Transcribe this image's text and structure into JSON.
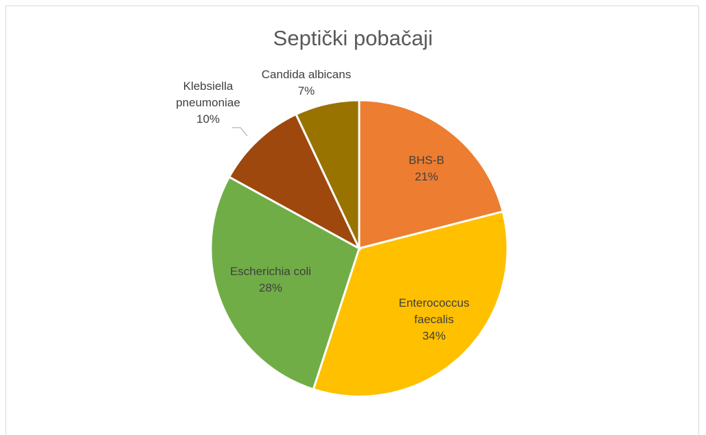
{
  "chart_data": {
    "type": "pie",
    "title": "Septički pobačaji",
    "categories": [
      "BHS-B",
      "Enterococcus faecalis",
      "Escherichia coli",
      "Klebsiella pneumoniae",
      "Candida albicans"
    ],
    "values": [
      21,
      34,
      28,
      10,
      7
    ],
    "value_labels": [
      "21%",
      "34%",
      "28%",
      "10%",
      "7%"
    ],
    "colors": [
      "#ED7D31",
      "#FFC000",
      "#70AD47",
      "#9E480E",
      "#997300"
    ]
  }
}
